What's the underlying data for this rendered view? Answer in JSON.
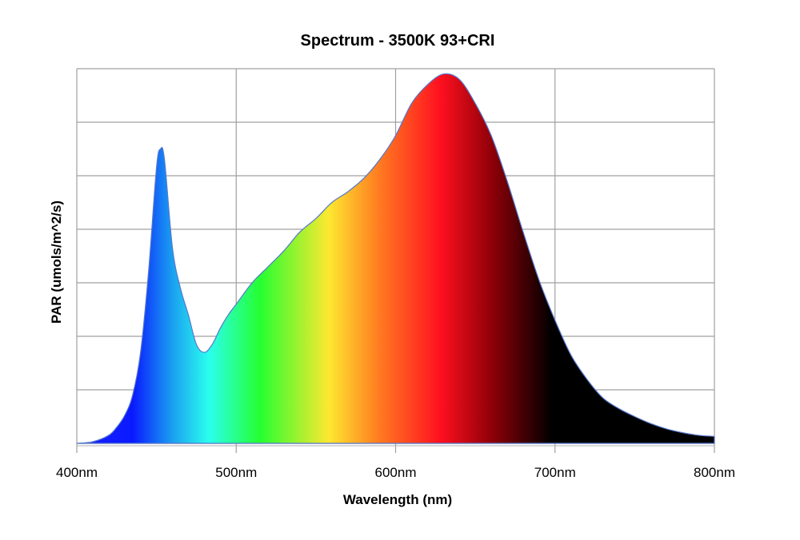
{
  "chart_data": {
    "type": "area",
    "title": "Spectrum - 3500K 93+CRI",
    "xlabel": "Wavelength (nm)",
    "ylabel": "PAR (umols/m^2/s)",
    "xlim": [
      400,
      800
    ],
    "ylim": [
      0,
      7
    ],
    "x_ticks": [
      400,
      500,
      600,
      700,
      800
    ],
    "x_tick_labels": [
      "400nm",
      "500nm",
      "600nm",
      "700nm",
      "800nm"
    ],
    "y_gridlines": [
      0,
      1,
      2,
      3,
      4,
      5,
      6,
      7
    ],
    "y_tick_labels_shown": false,
    "grid": true,
    "fill": "visible-spectrum gradient",
    "gradient_colors": [
      {
        "nm": 400,
        "color": "#1a20ff"
      },
      {
        "nm": 435,
        "color": "#0a1aff"
      },
      {
        "nm": 460,
        "color": "#1aa0f0"
      },
      {
        "nm": 483,
        "color": "#2affee"
      },
      {
        "nm": 515,
        "color": "#26ff30"
      },
      {
        "nm": 558,
        "color": "#fde830"
      },
      {
        "nm": 590,
        "color": "#ff7a20"
      },
      {
        "nm": 628,
        "color": "#ff1020"
      },
      {
        "nm": 660,
        "color": "#900008"
      },
      {
        "nm": 698,
        "color": "#000000"
      },
      {
        "nm": 800,
        "color": "#000000"
      }
    ],
    "outline_color": "#5577cc",
    "x": [
      400,
      410,
      420,
      425,
      430,
      435,
      440,
      445,
      450,
      452.5,
      455,
      460,
      465,
      470,
      475,
      480,
      485,
      490,
      495,
      500,
      510,
      520,
      530,
      540,
      550,
      560,
      570,
      580,
      590,
      600,
      610,
      620,
      630,
      640,
      650,
      660,
      670,
      680,
      690,
      700,
      710,
      720,
      730,
      740,
      750,
      760,
      770,
      780,
      790,
      800
    ],
    "y": [
      0.0,
      0.03,
      0.15,
      0.3,
      0.52,
      0.9,
      1.7,
      3.2,
      5.15,
      5.5,
      5.3,
      3.65,
      2.9,
      2.4,
      1.85,
      1.7,
      1.85,
      2.15,
      2.4,
      2.6,
      3.0,
      3.3,
      3.6,
      3.95,
      4.2,
      4.5,
      4.7,
      4.95,
      5.3,
      5.75,
      6.35,
      6.7,
      6.9,
      6.8,
      6.35,
      5.75,
      4.9,
      3.95,
      3.05,
      2.3,
      1.65,
      1.2,
      0.85,
      0.65,
      0.5,
      0.37,
      0.27,
      0.2,
      0.15,
      0.13
    ]
  }
}
